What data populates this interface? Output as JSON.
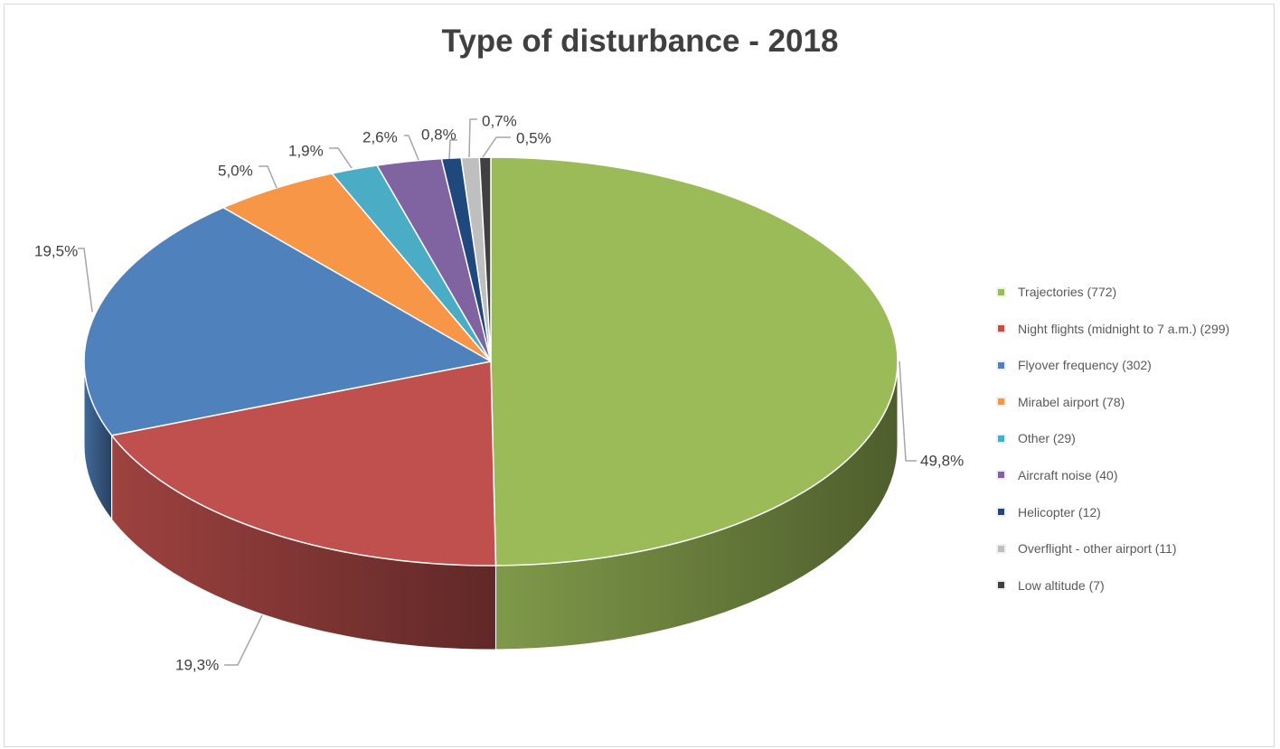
{
  "chart_data": {
    "type": "pie",
    "title": "Type of disturbance - 2018",
    "style": "3d-exploded-pie",
    "categories": [
      "Trajectories (772)",
      "Night flights (midnight to 7 a.m.) (299)",
      "Flyover frequency (302)",
      "Mirabel airport (78)",
      "Other (29)",
      "Aircraft noise (40)",
      "Helicopter (12)",
      "Overflight - other airport (11)",
      "Low altitude (7)"
    ],
    "values": [
      772,
      299,
      302,
      78,
      29,
      40,
      12,
      11,
      7
    ],
    "data_labels": [
      "49,8%",
      "19,3%",
      "19,5%",
      "5,0%",
      "1,9%",
      "2,6%",
      "0,8%",
      "0,7%",
      "0,5%"
    ],
    "colors": [
      "#9bbb59",
      "#c0504d",
      "#4f81bd",
      "#f79646",
      "#4bacc6",
      "#8064a2",
      "#1f497d",
      "#bfbfbf",
      "#404040"
    ],
    "legend_position": "right",
    "slice_order": "clockwise from 12 o'clock"
  }
}
